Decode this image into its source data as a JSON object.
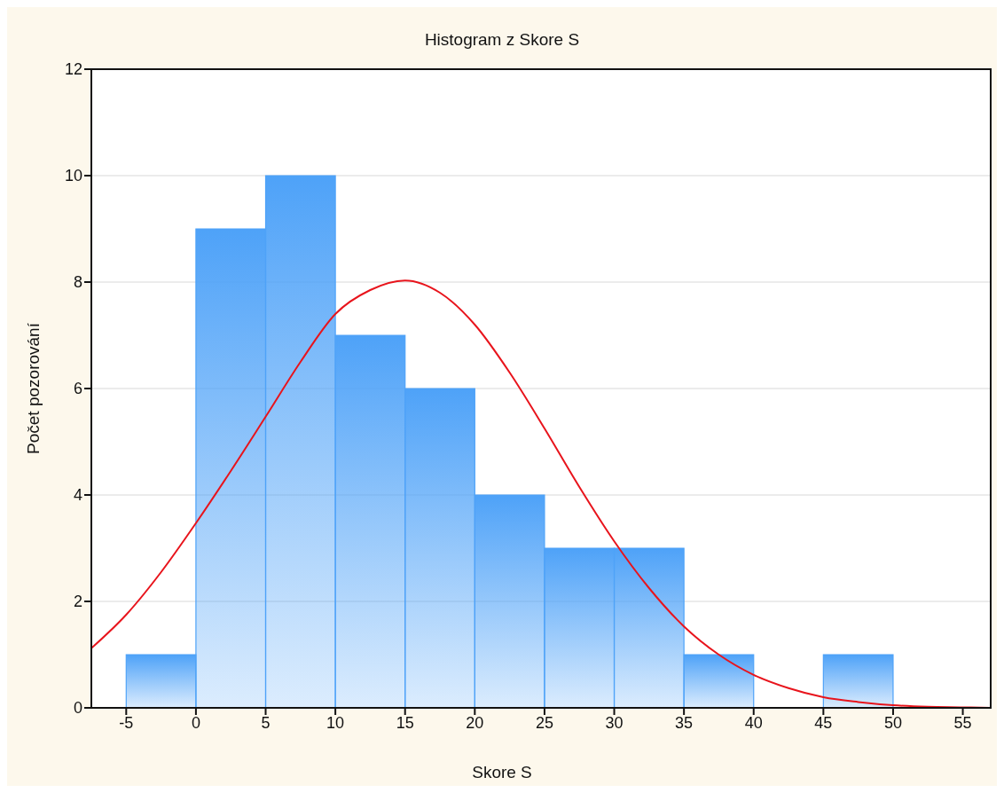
{
  "chart_data": {
    "type": "histogram",
    "title": "Histogram z Skore S",
    "xlabel": "Skore S",
    "ylabel": "Počet pozorování",
    "bins": [
      -5,
      0,
      5,
      10,
      15,
      20,
      25,
      30,
      35,
      40,
      45,
      50
    ],
    "values": [
      1,
      9,
      10,
      7,
      6,
      4,
      3,
      3,
      1,
      0,
      1
    ],
    "color": "#4ea2f8",
    "series": [
      {
        "type": "line",
        "color": "#e8141c",
        "x": [
          -7.5,
          -5,
          -2.5,
          0,
          2.5,
          5,
          7.5,
          10,
          12.5,
          15,
          17.5,
          20,
          22.5,
          25,
          27.5,
          30,
          32.5,
          35,
          37.5,
          40,
          42.5,
          45,
          47.5,
          50,
          52.5,
          55,
          57
        ],
        "values": [
          1.12,
          1.75,
          2.55,
          3.47,
          4.45,
          5.47,
          6.5,
          7.4,
          7.85,
          8.03,
          7.8,
          7.2,
          6.3,
          5.25,
          4.15,
          3.13,
          2.25,
          1.53,
          1.0,
          0.62,
          0.37,
          0.2,
          0.11,
          0.05,
          0.02,
          0.01,
          0.0
        ]
      }
    ],
    "xlim": [
      -7.5,
      57
    ],
    "xticks": [
      -5,
      0,
      5,
      10,
      15,
      20,
      25,
      30,
      35,
      40,
      45,
      50,
      55
    ],
    "ylim": [
      0,
      12
    ],
    "yticks": [
      0,
      2,
      4,
      6,
      8,
      10,
      12
    ],
    "grid": "y",
    "marker": "none",
    "line_style": "solid"
  }
}
